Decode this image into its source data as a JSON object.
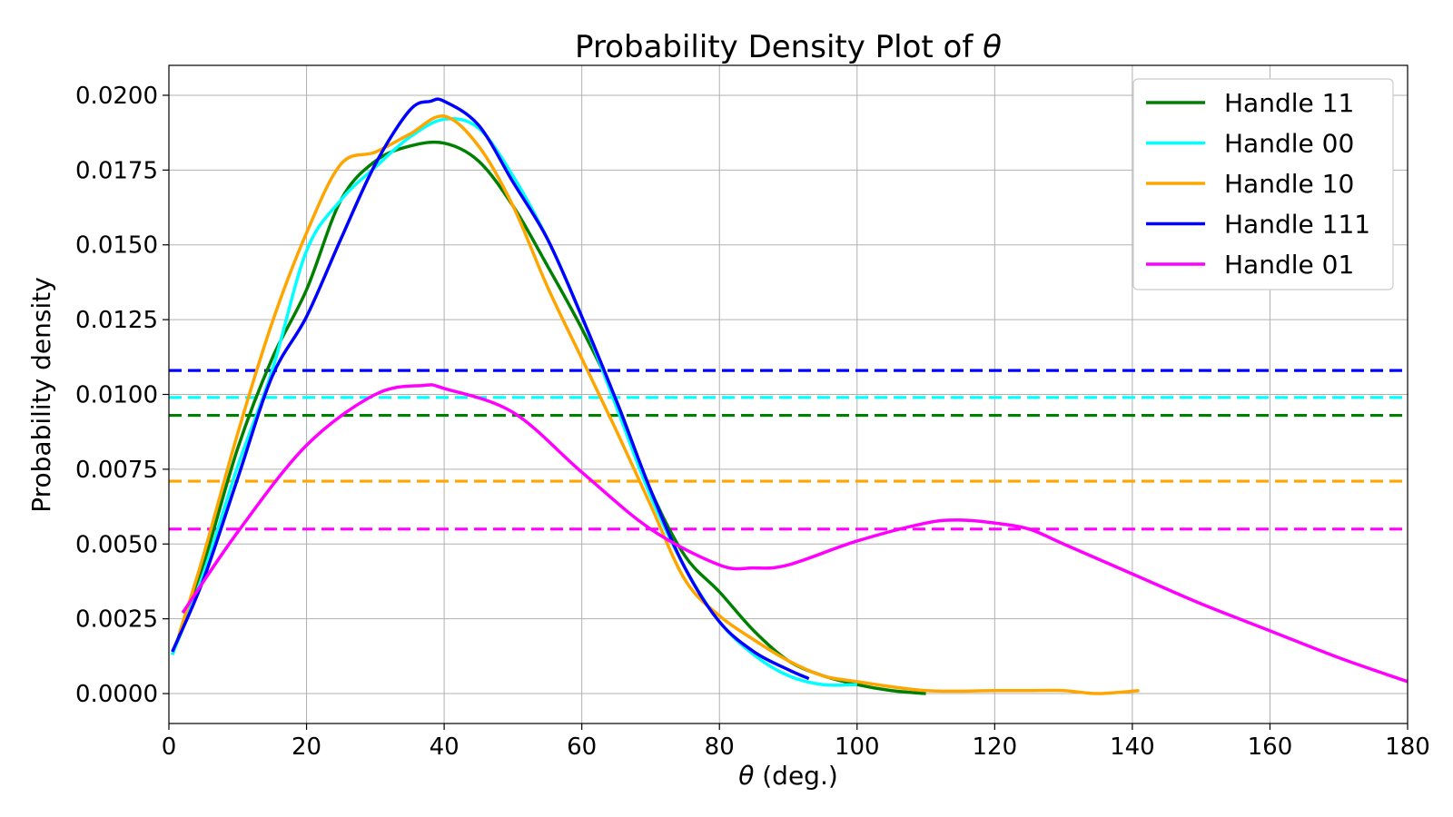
{
  "chart_data": {
    "type": "line",
    "title_prefix": "Probability Density Plot of ",
    "title_symbol": "θ",
    "xlabel_symbol": "θ",
    "xlabel_rest": " (deg.)",
    "ylabel": "Probability density",
    "xlim": [
      0,
      180
    ],
    "ylim": [
      -0.001,
      0.021
    ],
    "xticks": [
      0,
      20,
      40,
      60,
      80,
      100,
      120,
      140,
      160,
      180
    ],
    "yticks": [
      0.0,
      0.0025,
      0.005,
      0.0075,
      0.01,
      0.0125,
      0.015,
      0.0175,
      0.02
    ],
    "xtick_labels": [
      "0",
      "20",
      "40",
      "60",
      "80",
      "100",
      "120",
      "140",
      "160",
      "180"
    ],
    "ytick_labels": [
      "0.0000",
      "0.0025",
      "0.0050",
      "0.0075",
      "0.0100",
      "0.0125",
      "0.0150",
      "0.0175",
      "0.0200"
    ],
    "grid": true,
    "legend_position": "top-right",
    "series": [
      {
        "name": "Handle 11",
        "color": "#008000",
        "x": [
          0.5,
          5,
          10,
          15,
          20,
          25,
          30,
          35,
          40,
          45,
          50,
          55,
          60,
          65,
          70,
          75,
          80,
          85,
          90,
          95,
          100,
          105,
          110
        ],
        "y": [
          0.0013,
          0.0043,
          0.0082,
          0.0112,
          0.0135,
          0.0165,
          0.0178,
          0.0183,
          0.0184,
          0.0178,
          0.0163,
          0.0143,
          0.0122,
          0.0098,
          0.0068,
          0.0046,
          0.0034,
          0.0021,
          0.0011,
          0.0006,
          0.0003,
          0.0001,
          0.0
        ]
      },
      {
        "name": "Handle 00",
        "color": "#00FFFF",
        "x": [
          0.5,
          5,
          10,
          15,
          20,
          25,
          30,
          35,
          40,
          45,
          50,
          55,
          60,
          65,
          70,
          75,
          80,
          85,
          90,
          95,
          100
        ],
        "y": [
          0.0013,
          0.004,
          0.0076,
          0.0108,
          0.0148,
          0.0165,
          0.0176,
          0.0186,
          0.0192,
          0.0189,
          0.0173,
          0.0152,
          0.0126,
          0.0096,
          0.0066,
          0.0042,
          0.0024,
          0.0013,
          0.0006,
          0.0003,
          0.0003
        ]
      },
      {
        "name": "Handle 10",
        "color": "#FFA500",
        "x": [
          1.5,
          5,
          10,
          15,
          20,
          25,
          30,
          35,
          40,
          45,
          50,
          55,
          60,
          65,
          70,
          75,
          80,
          85,
          90,
          95,
          100,
          110,
          120,
          125,
          130,
          135,
          141
        ],
        "y": [
          0.002,
          0.0046,
          0.0087,
          0.0124,
          0.0154,
          0.0177,
          0.0181,
          0.0187,
          0.0193,
          0.0183,
          0.0163,
          0.0136,
          0.0112,
          0.0088,
          0.0063,
          0.0038,
          0.0026,
          0.0018,
          0.0011,
          0.0006,
          0.0004,
          0.0001,
          0.0001,
          0.0001,
          0.0001,
          0.0,
          0.0001
        ]
      },
      {
        "name": "Handle 111",
        "color": "#0000FF",
        "x": [
          0.5,
          5,
          10,
          15,
          20,
          25,
          30,
          35,
          38,
          40,
          45,
          50,
          55,
          60,
          65,
          70,
          75,
          80,
          85,
          90,
          93
        ],
        "y": [
          0.0014,
          0.0038,
          0.0072,
          0.0106,
          0.0126,
          0.0152,
          0.0177,
          0.0195,
          0.0198,
          0.0198,
          0.019,
          0.0171,
          0.0152,
          0.0126,
          0.0098,
          0.0068,
          0.0042,
          0.0024,
          0.0014,
          0.0008,
          0.0005
        ]
      },
      {
        "name": "Handle 01",
        "color": "#FF00FF",
        "x": [
          2,
          10,
          20,
          30,
          37,
          40,
          50,
          60,
          70,
          80,
          85,
          90,
          100,
          110,
          115,
          120,
          125,
          130,
          140,
          150,
          160,
          170,
          180
        ],
        "y": [
          0.0027,
          0.0054,
          0.0083,
          0.01,
          0.0103,
          0.0102,
          0.0094,
          0.0074,
          0.0055,
          0.0043,
          0.0042,
          0.0043,
          0.0051,
          0.0057,
          0.0058,
          0.0057,
          0.0055,
          0.005,
          0.004,
          0.003,
          0.0021,
          0.0012,
          0.0004
        ]
      }
    ],
    "reference_lines": [
      {
        "series": "Handle 111",
        "color": "#0000FF",
        "y": 0.0108
      },
      {
        "series": "Handle 00",
        "color": "#00FFFF",
        "y": 0.0099
      },
      {
        "series": "Handle 11",
        "color": "#008000",
        "y": 0.0093
      },
      {
        "series": "Handle 10",
        "color": "#FFA500",
        "y": 0.0071
      },
      {
        "series": "Handle 01",
        "color": "#FF00FF",
        "y": 0.0055
      }
    ]
  }
}
